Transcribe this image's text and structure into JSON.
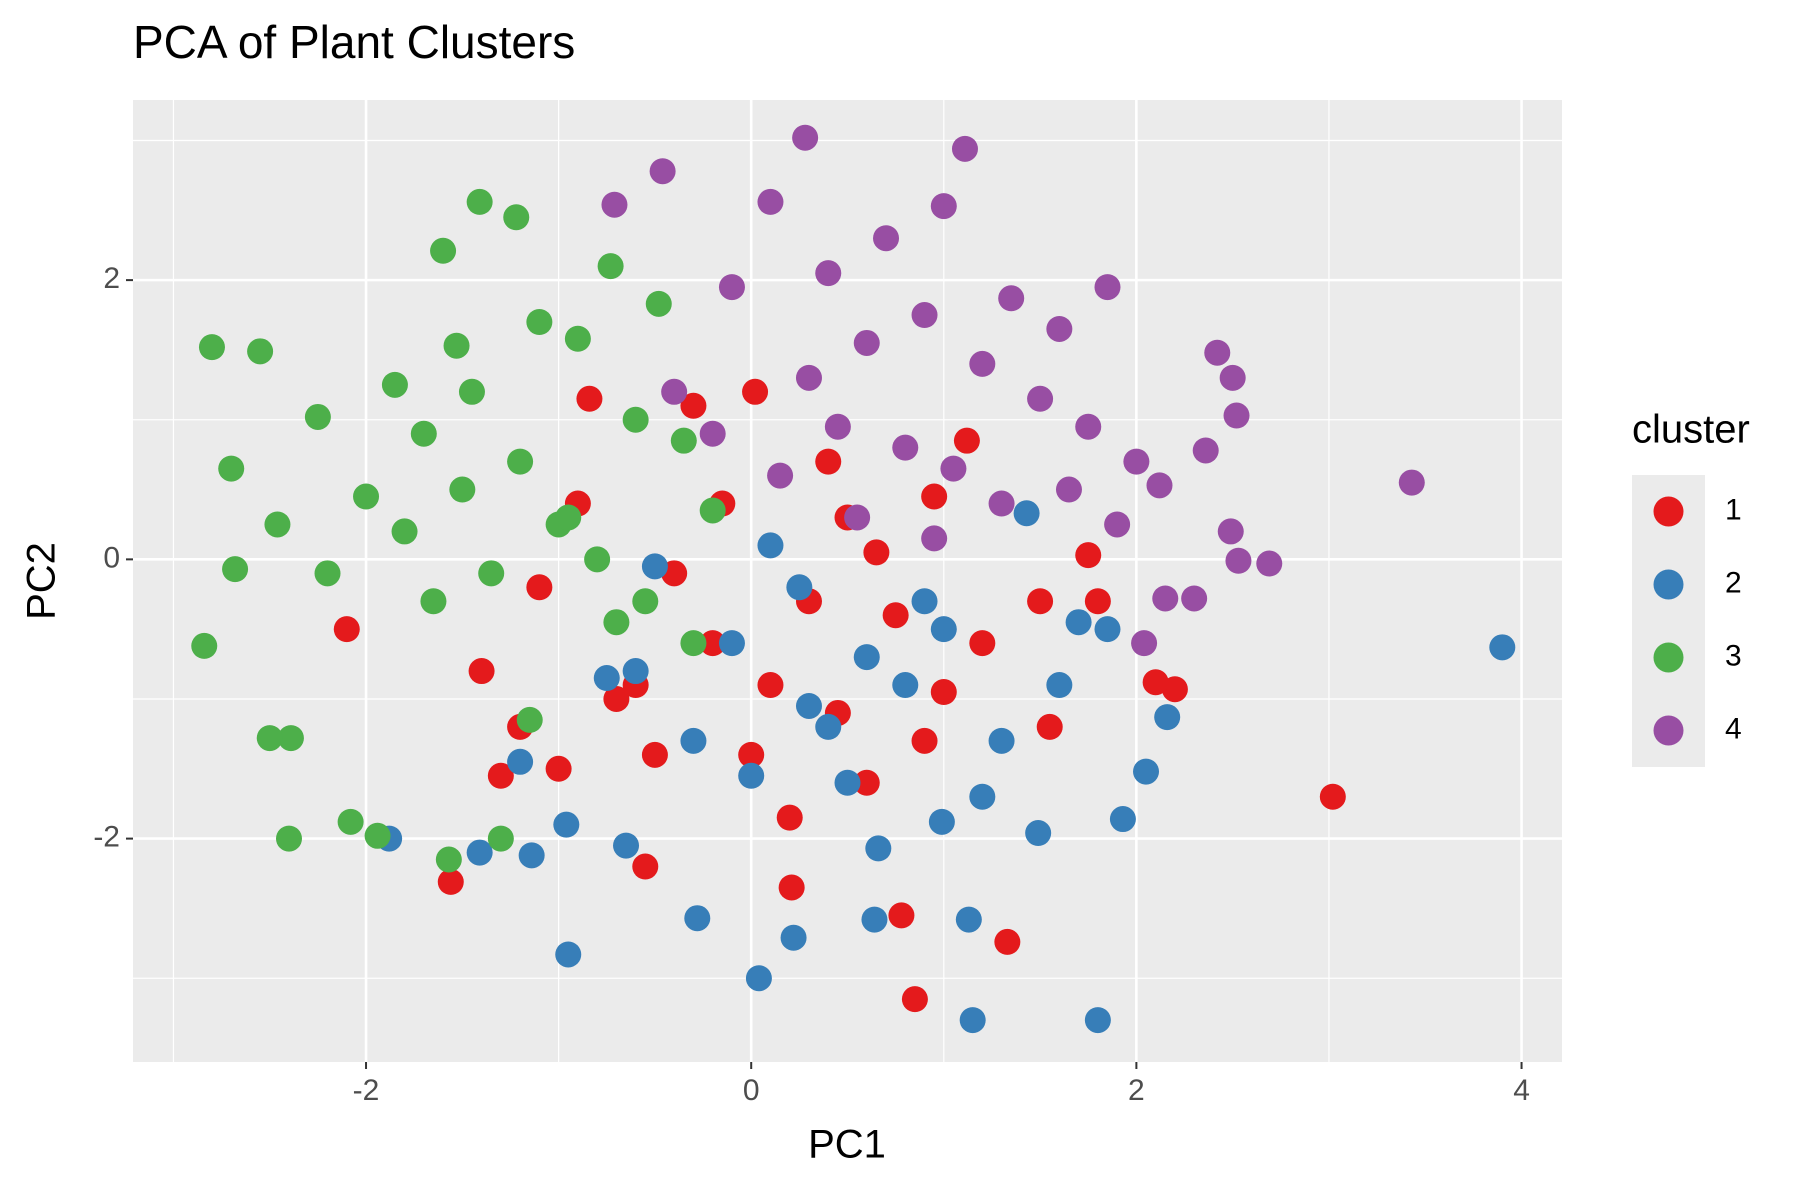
{
  "chart_data": {
    "type": "scatter",
    "title": "PCA of Plant Clusters",
    "x_label": "PC1",
    "y_label": "PC2",
    "legend_title": "cluster",
    "legend_position": "right",
    "grid": true,
    "xlim": [
      -3.21,
      4.21
    ],
    "ylim": [
      -3.6,
      3.29
    ],
    "xticks": [
      -2,
      0,
      2,
      4
    ],
    "yticks": [
      -2,
      0,
      2
    ],
    "series": [
      {
        "name": "1",
        "color": "#E41A1C",
        "x": [
          3.02,
          0.85,
          1.33,
          0.78,
          0.21,
          -1.56,
          -0.55,
          -2.1,
          2.2,
          2.1,
          1.75,
          1.12,
          -0.84,
          -0.3,
          0.02,
          -1.2,
          -1.0,
          -0.6,
          -0.2,
          0.3,
          0.6,
          0.9,
          1.2,
          1.55,
          -1.4,
          -0.9,
          -0.4,
          0.1,
          0.45,
          0.75,
          -1.3,
          -0.7,
          0.0,
          0.5,
          1.0,
          1.5,
          -0.5,
          0.2,
          0.65,
          -1.1,
          1.8,
          0.4,
          -0.15,
          0.95
        ],
        "values": [
          -1.7,
          -3.15,
          -2.74,
          -2.55,
          -2.35,
          -2.31,
          -2.2,
          -0.5,
          -0.93,
          -0.88,
          0.03,
          0.85,
          1.15,
          1.1,
          1.2,
          -1.2,
          -1.5,
          -0.9,
          -0.6,
          -0.3,
          -1.6,
          -1.3,
          -0.6,
          -1.2,
          -0.8,
          0.4,
          -0.1,
          -0.9,
          -1.1,
          -0.4,
          -1.55,
          -1.0,
          -1.4,
          0.3,
          -0.95,
          -0.3,
          -1.4,
          -1.85,
          0.05,
          -0.2,
          -0.3,
          0.7,
          0.4,
          0.45
        ]
      },
      {
        "name": "2",
        "color": "#377EB8",
        "x": [
          3.9,
          1.8,
          1.15,
          0.04,
          -0.95,
          -0.28,
          0.22,
          0.64,
          1.13,
          -1.88,
          -1.41,
          -1.14,
          1.43,
          2.16,
          2.05,
          1.93,
          1.49,
          0.99,
          0.66,
          -0.96,
          -0.65,
          1.2,
          0.4,
          -0.1,
          0.8,
          1.6,
          -0.5,
          0.1,
          0.6,
          1.0,
          1.3,
          -0.3,
          0.3,
          0.9,
          1.7,
          -0.75,
          -1.2,
          0.0,
          0.5,
          1.85,
          -0.6,
          0.25
        ],
        "values": [
          -0.63,
          -3.3,
          -3.3,
          -3.0,
          -2.83,
          -2.57,
          -2.71,
          -2.58,
          -2.58,
          -2.0,
          -2.1,
          -2.12,
          0.33,
          -1.13,
          -1.52,
          -1.86,
          -1.96,
          -1.88,
          -2.07,
          -1.9,
          -2.05,
          -1.7,
          -1.2,
          -0.6,
          -0.9,
          -0.9,
          -0.05,
          0.1,
          -0.7,
          -0.5,
          -1.3,
          -1.3,
          -1.05,
          -0.3,
          -0.45,
          -0.85,
          -1.45,
          -1.55,
          -1.6,
          -0.5,
          -0.8,
          -0.2
        ]
      },
      {
        "name": "3",
        "color": "#4DAF4A",
        "x": [
          -2.84,
          -2.8,
          -2.55,
          -2.7,
          -2.68,
          -2.46,
          -2.4,
          -2.08,
          -1.94,
          -1.57,
          -1.41,
          -1.22,
          -1.6,
          -0.73,
          -0.48,
          -1.53,
          -2.25,
          -2.39,
          -2.5,
          -1.3,
          -1.85,
          -1.7,
          -1.45,
          -1.1,
          -0.9,
          -0.6,
          -0.35,
          -0.2,
          -2.0,
          -1.8,
          -1.5,
          -1.2,
          -1.0,
          -0.8,
          -0.55,
          -0.3,
          -1.65,
          -1.35,
          -0.95,
          -0.7,
          -2.2,
          -1.15
        ],
        "values": [
          -0.62,
          1.52,
          1.49,
          0.65,
          -0.07,
          0.25,
          -2.0,
          -1.88,
          -1.98,
          -2.15,
          2.56,
          2.45,
          2.21,
          2.1,
          1.83,
          1.53,
          1.02,
          -1.28,
          -1.28,
          -2.0,
          1.25,
          0.9,
          1.2,
          1.7,
          1.58,
          1.0,
          0.85,
          0.35,
          0.45,
          0.2,
          0.5,
          0.7,
          0.25,
          0.0,
          -0.3,
          -0.6,
          -0.3,
          -0.1,
          0.3,
          -0.45,
          -0.1,
          -1.15
        ]
      },
      {
        "name": "4",
        "color": "#984EA3",
        "x": [
          0.28,
          1.11,
          -0.46,
          0.1,
          1.0,
          -0.71,
          3.43,
          2.42,
          2.5,
          2.52,
          2.69,
          2.53,
          2.49,
          2.36,
          2.3,
          2.15,
          2.12,
          2.04,
          0.7,
          1.35,
          1.6,
          1.85,
          0.9,
          0.4,
          -0.1,
          0.6,
          1.2,
          1.5,
          1.75,
          2.0,
          0.3,
          0.8,
          1.05,
          -0.4,
          -0.2,
          0.15,
          0.55,
          1.3,
          1.65,
          0.95,
          0.45,
          1.9
        ],
        "values": [
          3.02,
          2.94,
          2.78,
          2.56,
          2.53,
          2.54,
          0.55,
          1.48,
          1.3,
          1.03,
          -0.03,
          -0.01,
          0.2,
          0.78,
          -0.28,
          -0.28,
          0.53,
          -0.6,
          2.3,
          1.87,
          1.65,
          1.95,
          1.75,
          2.05,
          1.95,
          1.55,
          1.4,
          1.15,
          0.95,
          0.7,
          1.3,
          0.8,
          0.65,
          1.2,
          0.9,
          0.6,
          0.3,
          0.4,
          0.5,
          0.15,
          0.95,
          0.25
        ]
      }
    ]
  }
}
